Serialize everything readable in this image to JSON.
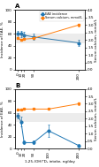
{
  "chart_data": [
    {
      "type": "line",
      "title": "A",
      "ylabel": "Incidence of EAE, %",
      "y2label": "Serum calcium, mmol/L",
      "x": [
        0,
        10,
        20,
        50,
        200
      ],
      "xlim": [
        -10,
        220
      ],
      "xticks": [
        0,
        10,
        20,
        50,
        200
      ],
      "ylim": [
        0,
        100
      ],
      "yticks": [
        0,
        20,
        40,
        60,
        80,
        100
      ],
      "y2lim": [
        0.0,
        4.0
      ],
      "y2ticks": [
        {
          "value": 0.0,
          "label": "0.0"
        },
        {
          "value": 0.5,
          "label": "0.5"
        },
        {
          "value": 1.0,
          "label": "1.0"
        },
        {
          "value": 1.5,
          "label": "1.5"
        },
        {
          "value": 2.0,
          "label": "2.0"
        },
        {
          "value": 2.5,
          "label": "2.5"
        },
        {
          "value": 3.0,
          "label": "3.0"
        },
        {
          "value": 3.5,
          "label": "3.5"
        },
        {
          "value": 4.0,
          "label": "4.0"
        }
      ],
      "y2_shaded_range": [
        1.8,
        2.4
      ],
      "legend": "upper right",
      "series": [
        {
          "name": "EAE incidence",
          "color": "#1f77b4",
          "marker": "circle",
          "values": [
            60,
            60,
            58,
            55,
            45
          ],
          "errors": [
            5,
            5,
            5,
            5,
            5
          ]
        },
        {
          "name": "Serum calcium, mmol/L",
          "axis": "y2",
          "color": "#ff7f0e",
          "marker": "square",
          "values": [
            2.1,
            2.0,
            2.05,
            2.1,
            3.0
          ],
          "errors": [
            0.05,
            0.05,
            0.05,
            0.05,
            0.1
          ]
        }
      ]
    },
    {
      "type": "line",
      "title": "B",
      "xlabel": "1,25-(OH)²D₃ intake, ng/day",
      "ylabel": "Incidence of EAE, %",
      "y2label": "Serum calcium, mmol/L",
      "x": [
        0,
        10,
        20,
        50,
        100,
        200
      ],
      "xlim": [
        -10,
        220
      ],
      "xticks": [
        0,
        10,
        20,
        50,
        100,
        200
      ],
      "ylim": [
        0,
        100
      ],
      "yticks": [
        0,
        20,
        40,
        60,
        80,
        100
      ],
      "y2lim": [
        0.0,
        4.0
      ],
      "y2ticks": [
        {
          "value": 0.0,
          "label": "0.0"
        },
        {
          "value": 0.5,
          "label": "0.5"
        },
        {
          "value": 1.0,
          "label": "1.0"
        },
        {
          "value": 1.5,
          "label": "1.5"
        },
        {
          "value": 2.0,
          "label": "2.0"
        },
        {
          "value": 2.5,
          "label": "2.5"
        },
        {
          "value": 3.0,
          "label": "3.0"
        },
        {
          "value": 3.5,
          "label": "3.5"
        },
        {
          "value": 4.0,
          "label": "4.0"
        }
      ],
      "y2_shaded_range": [
        1.8,
        2.4
      ],
      "series": [
        {
          "color": "#1f77b4",
          "marker": "circle",
          "values": [
            55,
            45,
            10,
            10,
            30,
            5
          ],
          "errors": [
            5,
            8,
            3,
            3,
            10,
            2
          ]
        },
        {
          "axis": "y2",
          "color": "#ff7f0e",
          "marker": "square",
          "values": [
            2.6,
            2.6,
            2.65,
            2.65,
            2.65,
            3.0
          ],
          "errors": [
            0.05,
            0.05,
            0.05,
            0.05,
            0.05,
            0.1
          ]
        }
      ]
    }
  ]
}
